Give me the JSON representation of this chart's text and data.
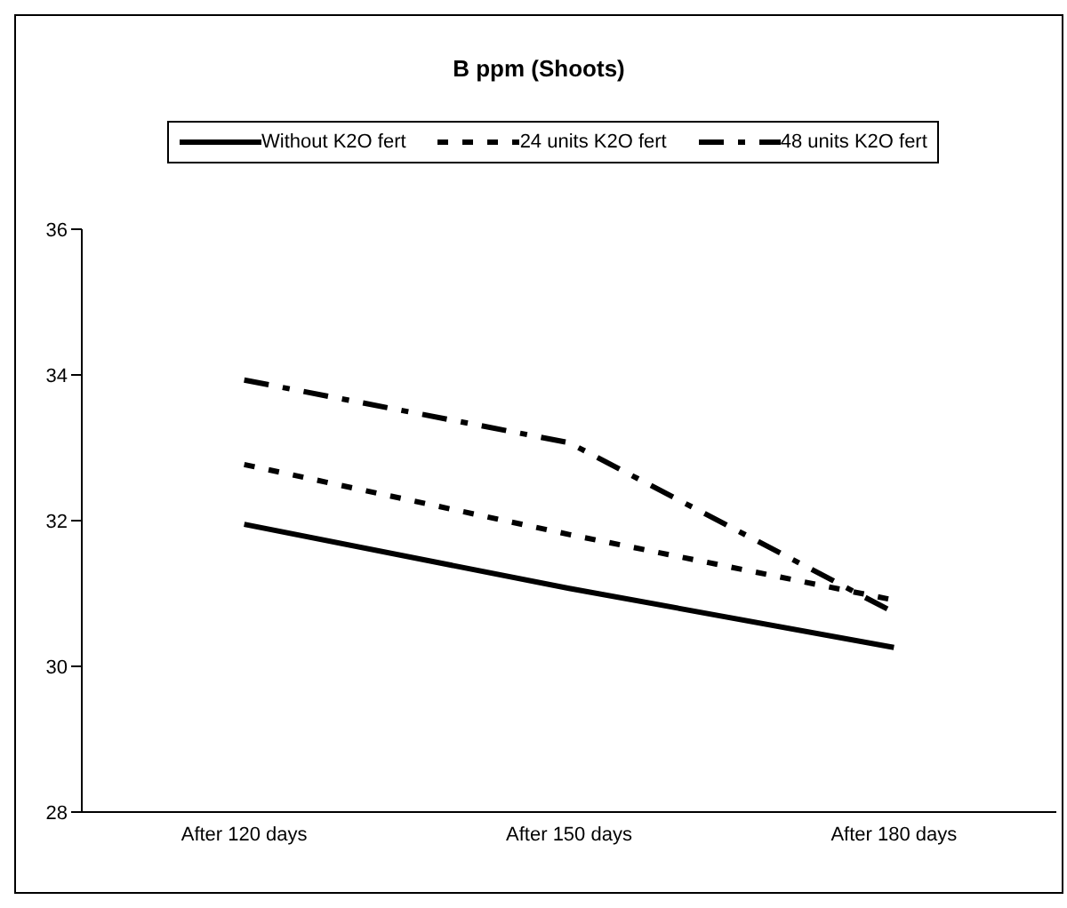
{
  "chart_data": {
    "type": "line",
    "title": "B ppm (Shoots)",
    "categories": [
      "After 120 days",
      "After 150 days",
      "After 180 days"
    ],
    "series": [
      {
        "name": "Without K2O fert",
        "color": "#000000",
        "line_style": "solid",
        "values": [
          31.95,
          31.07,
          30.26
        ]
      },
      {
        "name": "24 units K2O fert",
        "color": "#000000",
        "line_style": "dotted",
        "values": [
          32.77,
          31.81,
          30.91
        ]
      },
      {
        "name": "48 units K2O fert",
        "color": "#000000",
        "line_style": "dashdot",
        "values": [
          33.93,
          33.07,
          30.74
        ]
      }
    ],
    "ylim": [
      28,
      36
    ],
    "yticks": [
      28,
      30,
      32,
      34,
      36
    ],
    "grid": false,
    "legend": "top",
    "marker": "none"
  }
}
